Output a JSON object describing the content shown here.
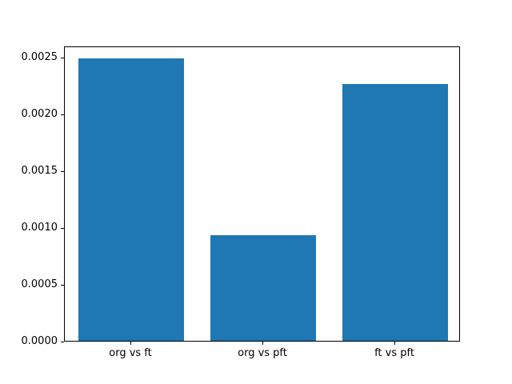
{
  "chart_data": {
    "type": "bar",
    "title": "",
    "xlabel": "",
    "ylabel": "",
    "categories": [
      "org vs ft",
      "org vs pft",
      "ft vs pft"
    ],
    "values": [
      0.00249,
      0.00093,
      0.00226
    ],
    "ylim": [
      0,
      0.0026
    ],
    "yticks": [
      0.0,
      0.0005,
      0.001,
      0.0015,
      0.002,
      0.0025
    ],
    "ytick_labels": [
      "0.0000",
      "0.0005",
      "0.0010",
      "0.0015",
      "0.0020",
      "0.0025"
    ],
    "bar_color": "#1f77b4",
    "bar_width_fraction": 0.8,
    "grid": false,
    "legend": "none",
    "background_color": "#ffffff",
    "spine_color": "#000000"
  }
}
